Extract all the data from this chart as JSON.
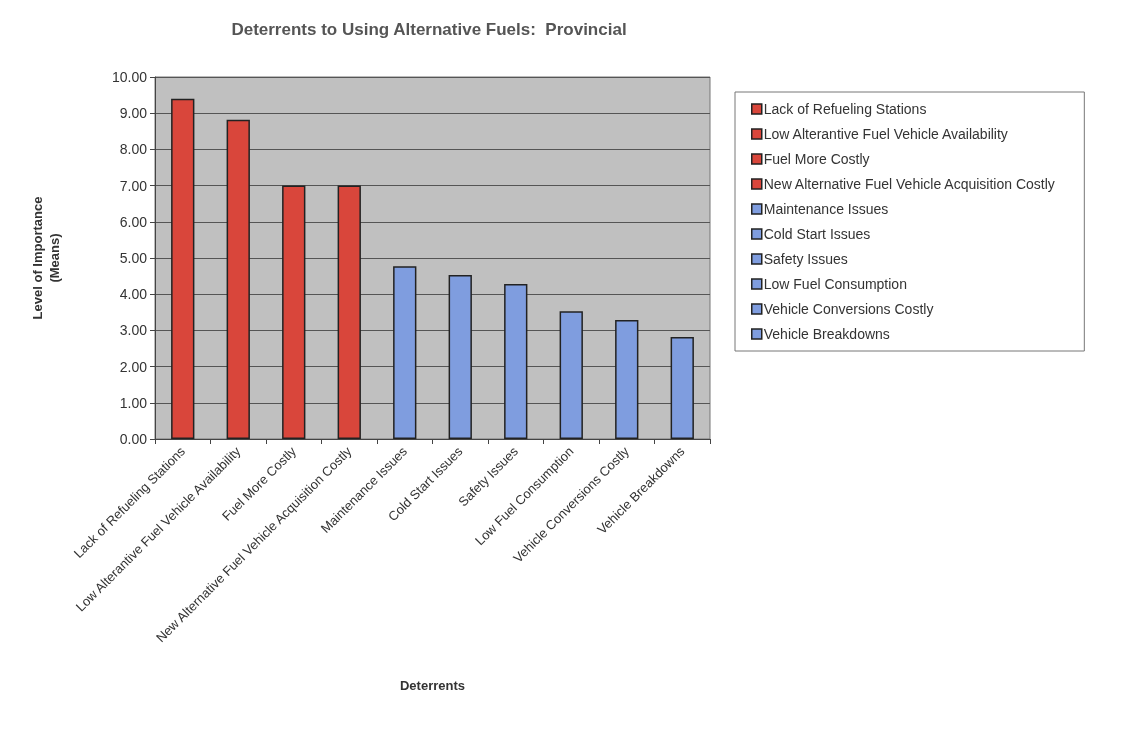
{
  "chart_data": {
    "type": "bar",
    "title": "Deterrents to Using Alternative Fuels:  Provincial",
    "xlabel": "Deterrents",
    "ylabel": "Level of Importance\n(Means)",
    "categories": [
      "Lack of Refueling Stations",
      "Low Alterantive Fuel Vehicle Availability",
      "Fuel More Costly",
      "New Alternative Fuel Vehicle Acquisition Costly",
      "Maintenance Issues",
      "Cold Start Issues",
      "Safety Issues",
      "Low Fuel Consumption",
      "Vehicle Conversions Costly",
      "Vehicle Breakdowns"
    ],
    "series": [
      {
        "name": "Lack of Refueling Stations",
        "color": "#d9463b",
        "values": [
          9.4,
          null,
          null,
          null,
          null,
          null,
          null,
          null,
          null,
          null
        ]
      },
      {
        "name": "Low Alterantive Fuel Vehicle Availability",
        "color": "#d9463b",
        "values": [
          null,
          8.82,
          null,
          null,
          null,
          null,
          null,
          null,
          null,
          null
        ]
      },
      {
        "name": "Fuel More Costly",
        "color": "#d9463b",
        "values": [
          null,
          null,
          7.0,
          null,
          null,
          null,
          null,
          null,
          null,
          null
        ]
      },
      {
        "name": "New Alternative Fuel Vehicle Acquisition Costly",
        "color": "#d9463b",
        "values": [
          null,
          null,
          null,
          7.0,
          null,
          null,
          null,
          null,
          null,
          null
        ]
      },
      {
        "name": "Maintenance Issues",
        "color": "#7f9ddf",
        "values": [
          null,
          null,
          null,
          null,
          4.77,
          null,
          null,
          null,
          null,
          null
        ]
      },
      {
        "name": "Cold Start Issues",
        "color": "#7f9ddf",
        "values": [
          null,
          null,
          null,
          null,
          null,
          4.53,
          null,
          null,
          null,
          null
        ]
      },
      {
        "name": "Safety Issues",
        "color": "#7f9ddf",
        "values": [
          null,
          null,
          null,
          null,
          null,
          null,
          4.28,
          null,
          null,
          null
        ]
      },
      {
        "name": "Low Fuel Consumption",
        "color": "#7f9ddf",
        "values": [
          null,
          null,
          null,
          null,
          null,
          null,
          null,
          3.53,
          null,
          null
        ]
      },
      {
        "name": "Vehicle Conversions Costly",
        "color": "#7f9ddf",
        "values": [
          null,
          null,
          null,
          null,
          null,
          null,
          null,
          null,
          3.29,
          null
        ]
      },
      {
        "name": "Vehicle Breakdowns",
        "color": "#7f9ddf",
        "values": [
          null,
          null,
          null,
          null,
          null,
          null,
          null,
          null,
          null,
          2.82
        ]
      }
    ],
    "ylim": [
      0,
      10
    ],
    "yticks": [
      {
        "value": 0,
        "label": "0.00"
      },
      {
        "value": 1,
        "label": "1.00"
      },
      {
        "value": 2,
        "label": "2.00"
      },
      {
        "value": 3,
        "label": "3.00"
      },
      {
        "value": 4,
        "label": "4.00"
      },
      {
        "value": 5,
        "label": "5.00"
      },
      {
        "value": 6,
        "label": "6.00"
      },
      {
        "value": 7,
        "label": "7.00"
      },
      {
        "value": 8,
        "label": "8.00"
      },
      {
        "value": 9,
        "label": "9.00"
      },
      {
        "value": 10,
        "label": "10.00"
      }
    ],
    "grid": "y",
    "legend": "right"
  }
}
